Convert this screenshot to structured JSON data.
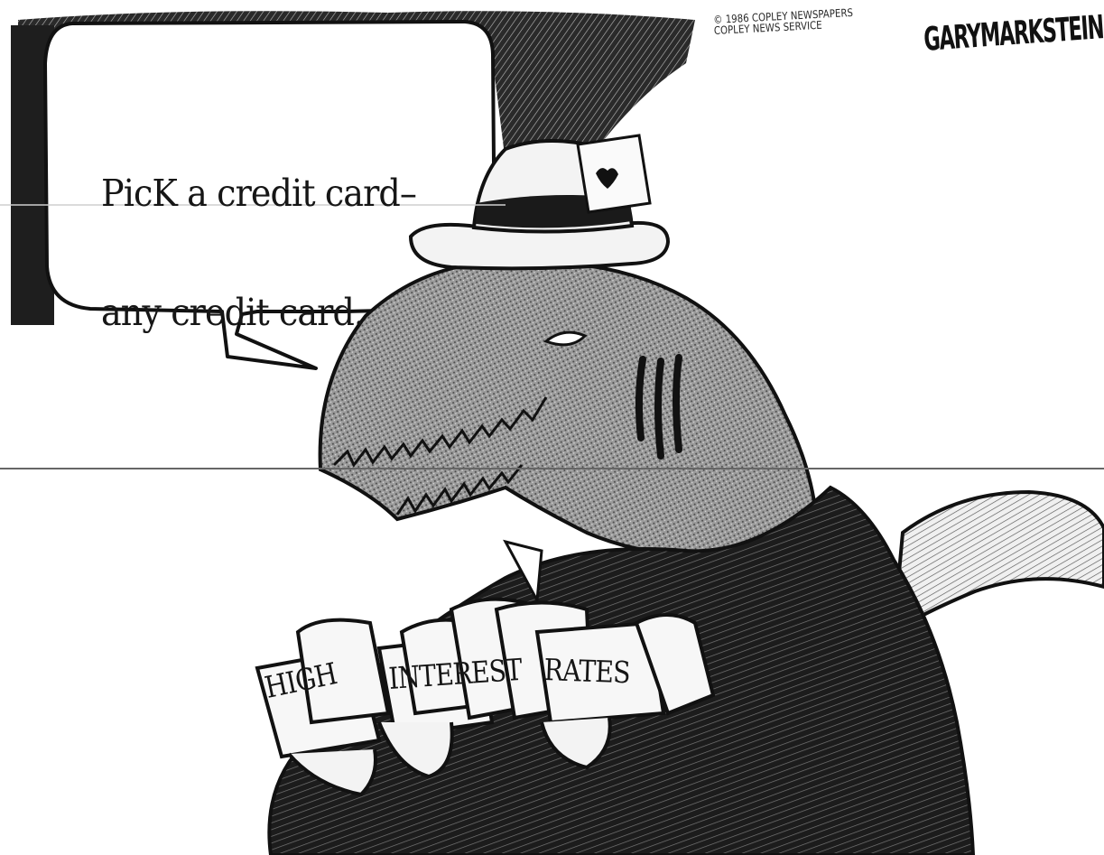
{
  "cartoon": {
    "speech_lines": [
      "PicK a credit card–",
      "any credit card."
    ],
    "card_words": [
      "HIGH",
      "INTEREST",
      "RATES"
    ],
    "copyright_lines": [
      "© 1986 COPLEY NEWSPAPERS",
      "COPLEY NEWS SERVICE"
    ],
    "signature": "GARYMARKSTEIN"
  },
  "colors": {
    "ink": "#111111",
    "paper": "#ffffff",
    "shade": "#8a8a8a",
    "card": "#f7f7f7"
  }
}
